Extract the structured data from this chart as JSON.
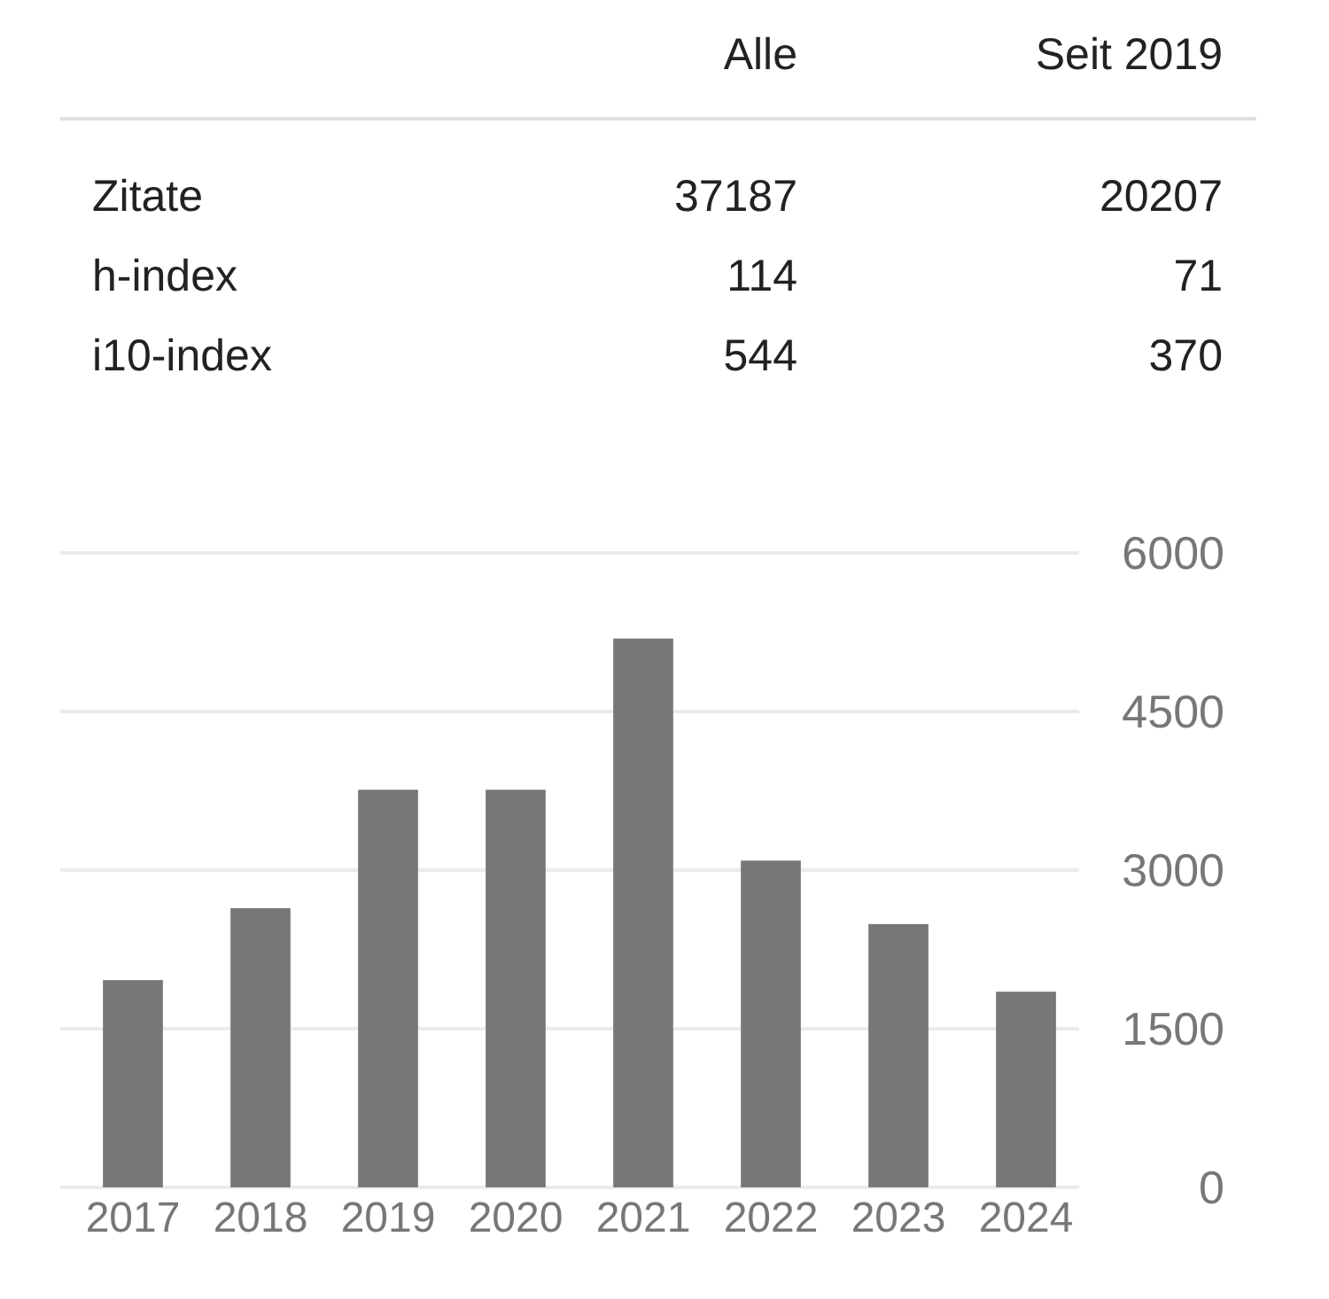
{
  "chart_data": [
    {
      "type": "other",
      "categories": [
        "Alle",
        "Seit 2019"
      ],
      "series": [
        {
          "name": "Zitate",
          "values": [
            37187,
            20207
          ]
        },
        {
          "name": "h-index",
          "values": [
            114,
            71
          ]
        },
        {
          "name": "i10-index",
          "values": [
            544,
            370
          ]
        }
      ],
      "data_labels": true
    },
    {
      "type": "bar",
      "categories": [
        "2017",
        "2018",
        "2019",
        "2020",
        "2021",
        "2022",
        "2023",
        "2024"
      ],
      "values": [
        1960,
        2640,
        3760,
        3760,
        5190,
        3090,
        2490,
        1850
      ],
      "color": "#777777",
      "ylim": [
        0,
        6000
      ],
      "yticks": [
        0,
        1500,
        3000,
        4500,
        6000
      ],
      "grid": "y"
    }
  ]
}
